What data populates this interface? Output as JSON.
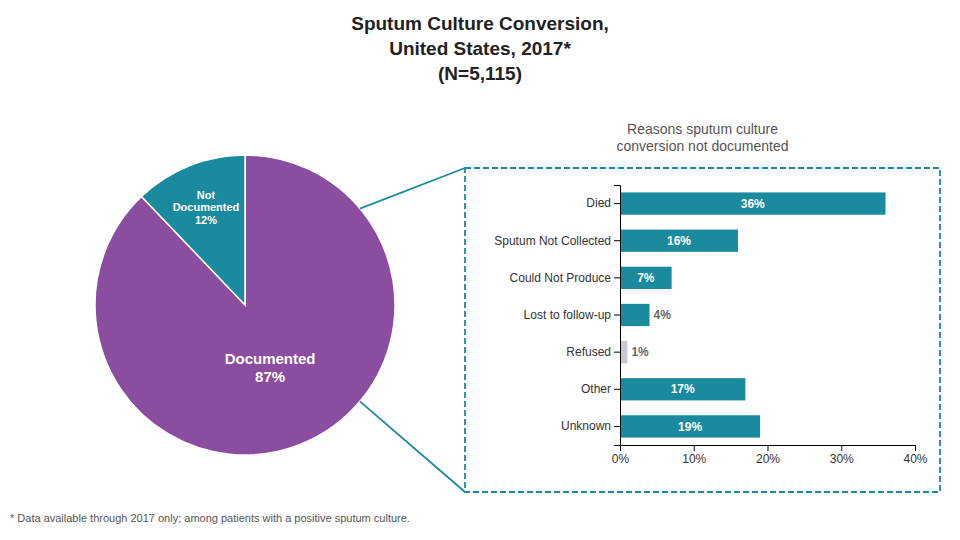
{
  "chart_data": [
    {
      "type": "pie",
      "title": "Sputum Culture Conversion,\nUnited States, 2017*\n(N=5,115)",
      "categories": [
        "Documented",
        "Not\nDocumented"
      ],
      "values": [
        87,
        12
      ],
      "value_labels": [
        "87%",
        "12%"
      ],
      "data_labels": true,
      "colors": [
        "#8b4da0",
        "#1a8a9e"
      ],
      "annotations": [
        "* Data available through 2017 only; among patients with a positive sputum culture."
      ]
    },
    {
      "type": "bar",
      "orientation": "horizontal",
      "subtitle": "Reasons sputum culture\nconversion not documented",
      "categories": [
        "Died",
        "Sputum Not Collected",
        "Could Not Produce",
        "Lost to follow-up",
        "Refused",
        "Other",
        "Unknown"
      ],
      "values": [
        36,
        16,
        7,
        4,
        1,
        17,
        19
      ],
      "value_labels": [
        "36%",
        "16%",
        "7%",
        "4%",
        "1%",
        "17%",
        "19%"
      ],
      "data_labels": true,
      "colors": [
        "#1a8a9e",
        "#1a8a9e",
        "#1a8a9e",
        "#1a8a9e",
        "#c8c8d0",
        "#1a8a9e",
        "#1a8a9e"
      ],
      "xlim": [
        0,
        40
      ],
      "xticks": [
        {
          "value": 0,
          "label": "0%"
        },
        {
          "value": 10,
          "label": "10%"
        },
        {
          "value": 20,
          "label": "20%"
        },
        {
          "value": 30,
          "label": "30%"
        },
        {
          "value": 40,
          "label": "40%"
        }
      ],
      "grid": false
    }
  ]
}
